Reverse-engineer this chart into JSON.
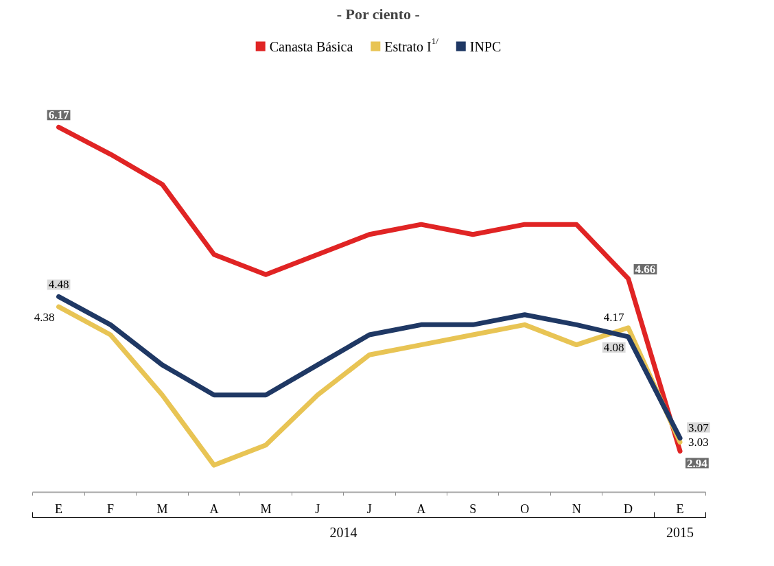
{
  "chart_data": {
    "type": "line",
    "title": "- Por ciento -",
    "categories": [
      "E",
      "F",
      "M",
      "A",
      "M",
      "J",
      "J",
      "A",
      "S",
      "O",
      "N",
      "D",
      "E"
    ],
    "tick_labels": "x",
    "legend": "top",
    "annotations": [
      "2014",
      "2015"
    ],
    "series": [
      {
        "name": "Canasta Básica",
        "color": "#e02424",
        "values": [
          6.17,
          5.9,
          5.6,
          4.9,
          4.7,
          4.9,
          5.1,
          5.2,
          5.1,
          5.2,
          5.2,
          4.66,
          2.94
        ],
        "value_labels": [
          "6.17",
          null,
          null,
          null,
          null,
          null,
          null,
          null,
          null,
          null,
          null,
          "4.66",
          "2.94"
        ]
      },
      {
        "name": "Estrato I$^{1/}$",
        "color": "#e8c454",
        "values": [
          4.38,
          4.1,
          3.5,
          2.8,
          3.0,
          3.5,
          3.9,
          4.0,
          4.1,
          4.2,
          4.0,
          4.17,
          3.03
        ],
        "value_labels": [
          "4.38",
          null,
          null,
          null,
          null,
          null,
          null,
          null,
          null,
          null,
          null,
          "4.17",
          "3.03"
        ]
      },
      {
        "name": "INPC",
        "color": "#1f3864",
        "values": [
          4.48,
          4.2,
          3.8,
          3.5,
          3.5,
          3.8,
          4.1,
          4.2,
          4.2,
          4.3,
          4.2,
          4.08,
          3.07
        ],
        "value_labels": [
          "4.48",
          null,
          null,
          null,
          null,
          null,
          null,
          null,
          null,
          null,
          null,
          "4.08",
          "3.07"
        ]
      }
    ]
  }
}
